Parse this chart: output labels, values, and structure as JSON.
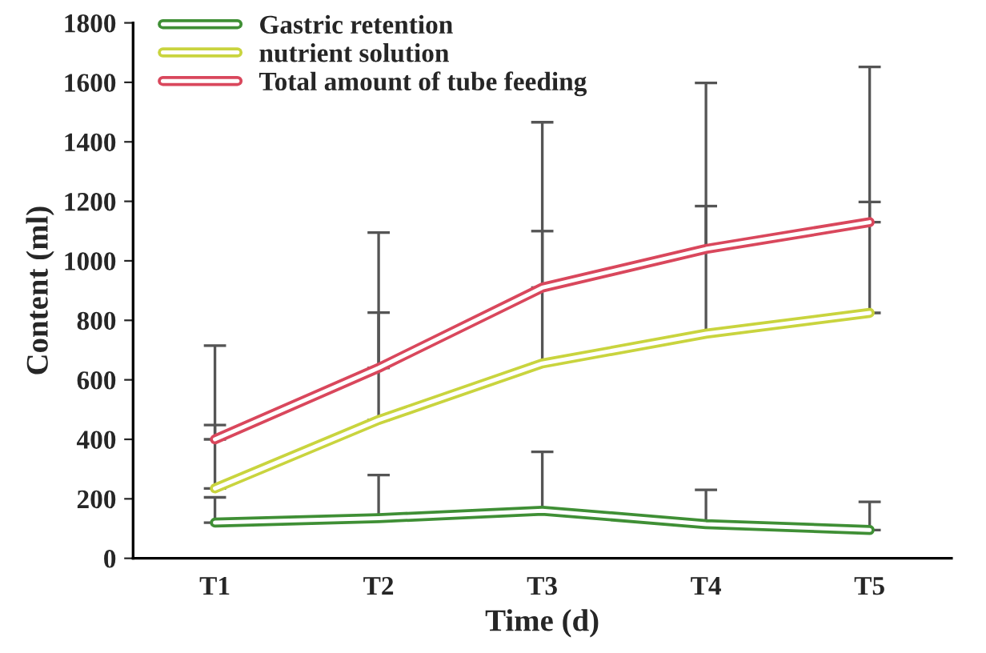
{
  "chart_data": {
    "type": "line",
    "xlabel": "Time (d)",
    "ylabel": "Content (ml)",
    "categories": [
      "T1",
      "T2",
      "T3",
      "T4",
      "T5"
    ],
    "series": [
      {
        "name": "Gastric retention",
        "color": "#3f8f35",
        "values": [
          120,
          135,
          160,
          115,
          95
        ],
        "errors": [
          [
            120,
            205
          ],
          [
            135,
            280
          ],
          [
            160,
            358
          ],
          [
            115,
            230
          ],
          [
            95,
            190
          ]
        ]
      },
      {
        "name": "nutrient solution",
        "color": "#c9d43e",
        "values": [
          235,
          465,
          655,
          755,
          825
        ],
        "errors": [
          [
            235,
            448
          ],
          [
            465,
            826
          ],
          [
            655,
            1100
          ],
          [
            755,
            1184
          ],
          [
            825,
            1198
          ]
        ]
      },
      {
        "name": "Total amount of tube feeding",
        "color": "#d9475c",
        "values": [
          400,
          640,
          910,
          1040,
          1130
        ],
        "errors": [
          [
            400,
            715
          ],
          [
            640,
            1095
          ],
          [
            910,
            1466
          ],
          [
            1040,
            1598
          ],
          [
            1130,
            1652
          ]
        ]
      }
    ],
    "ylim": [
      0,
      1800
    ],
    "yticks": [
      0,
      200,
      400,
      600,
      800,
      1000,
      1200,
      1400,
      1600,
      1800
    ],
    "grid": false,
    "legend": "top left",
    "marker": "none",
    "line_style": "solid"
  }
}
